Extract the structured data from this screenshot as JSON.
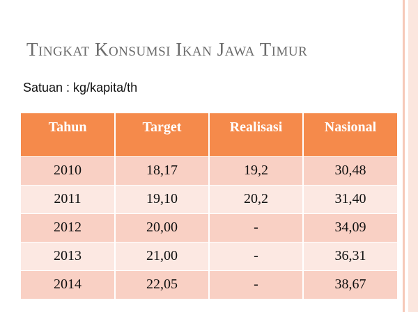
{
  "title": "Tingkat Konsumsi Ikan Jawa Timur",
  "subtitle": "Satuan : kg/kapita/th",
  "table": {
    "header": [
      "Tahun",
      "Target",
      "Realisasi",
      "Nasional"
    ],
    "rows": [
      [
        "2010",
        "18,17",
        "19,2",
        "30,48"
      ],
      [
        "2011",
        "19,10",
        "20,2",
        "31,40"
      ],
      [
        "2012",
        "20,00",
        "-",
        "34,09"
      ],
      [
        "2013",
        "21,00",
        "-",
        "36,31"
      ],
      [
        "2014",
        "22,05",
        "-",
        "38,67"
      ]
    ]
  }
}
